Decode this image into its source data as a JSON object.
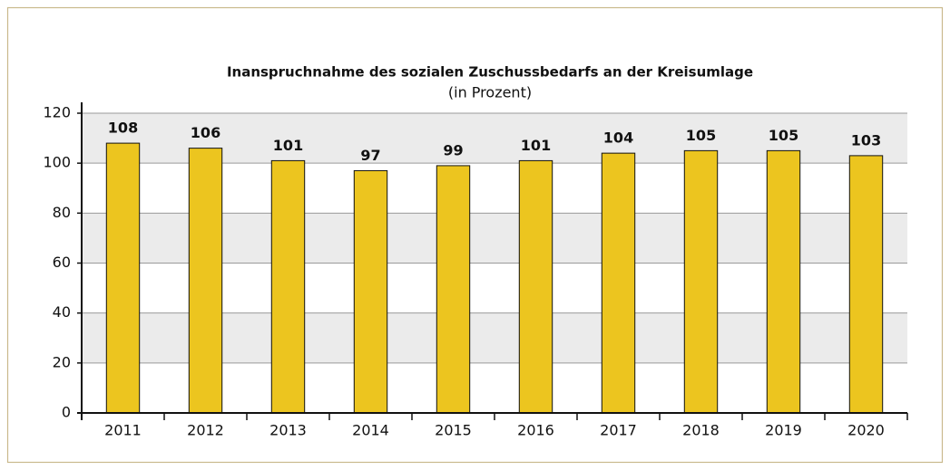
{
  "chart_data": {
    "type": "bar",
    "title": "Inanspruchnahme des sozialen Zuschussbedarfs an der Kreisumlage",
    "subtitle": "(in Prozent)",
    "categories": [
      "2011",
      "2012",
      "2013",
      "2014",
      "2015",
      "2016",
      "2017",
      "2018",
      "2019",
      "2020"
    ],
    "values": [
      108,
      106,
      101,
      97,
      99,
      101,
      104,
      105,
      105,
      103
    ],
    "color": "#ecc51f",
    "ylim": [
      0,
      120
    ],
    "yticks": [
      0,
      20,
      40,
      60,
      80,
      100,
      120
    ],
    "grid": true
  }
}
